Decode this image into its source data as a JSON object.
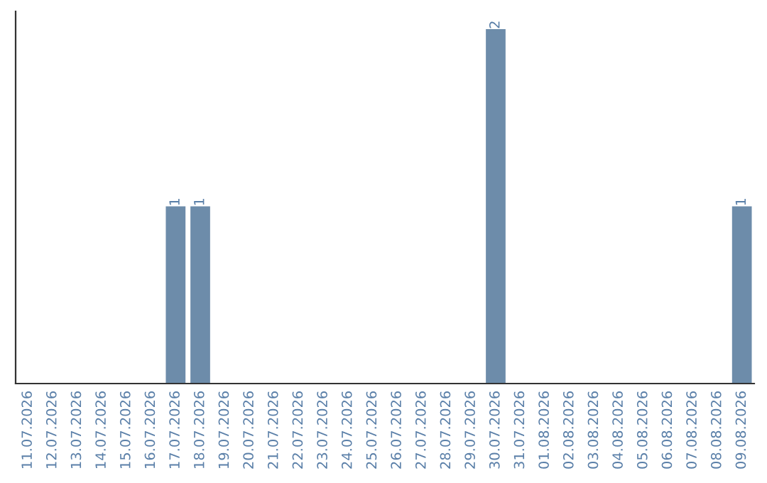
{
  "chart_data": {
    "type": "bar",
    "categories": [
      "11.07.2026",
      "12.07.2026",
      "13.07.2026",
      "14.07.2026",
      "15.07.2026",
      "16.07.2026",
      "17.07.2026",
      "18.07.2026",
      "19.07.2026",
      "20.07.2026",
      "21.07.2026",
      "22.07.2026",
      "23.07.2026",
      "24.07.2026",
      "25.07.2026",
      "26.07.2026",
      "27.07.2026",
      "28.07.2026",
      "29.07.2026",
      "30.07.2026",
      "31.07.2026",
      "01.08.2026",
      "02.08.2026",
      "03.08.2026",
      "04.08.2026",
      "05.08.2026",
      "06.08.2026",
      "07.08.2026",
      "08.08.2026",
      "09.08.2026"
    ],
    "values": [
      0,
      0,
      0,
      0,
      0,
      0,
      1,
      1,
      0,
      0,
      0,
      0,
      0,
      0,
      0,
      0,
      0,
      0,
      0,
      2,
      0,
      0,
      0,
      0,
      0,
      0,
      0,
      0,
      0,
      1
    ],
    "value_labels": [
      null,
      null,
      null,
      null,
      null,
      null,
      "1",
      "1",
      null,
      null,
      null,
      null,
      null,
      null,
      null,
      null,
      null,
      null,
      null,
      "2",
      null,
      null,
      null,
      null,
      null,
      null,
      null,
      null,
      null,
      "1"
    ],
    "color": "#6d8caa",
    "tick_labels": "x",
    "grid": false,
    "legend": false
  }
}
